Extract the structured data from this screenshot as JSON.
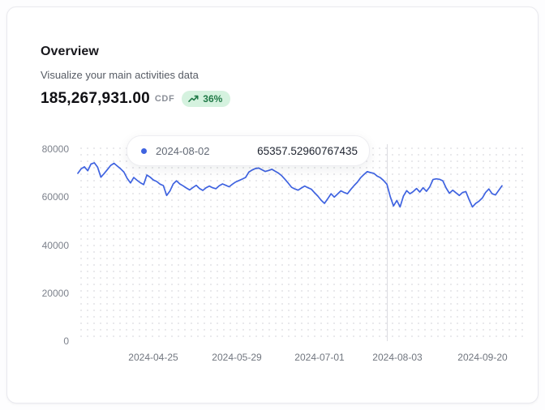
{
  "header": {
    "title": "Overview",
    "subtitle": "Visualize your main activities data",
    "amount": "185,267,931.00",
    "currency": "CDF",
    "trend_badge": {
      "label": "36%",
      "direction": "up",
      "bg_color": "#d5f2df",
      "text_color": "#217a48"
    }
  },
  "tooltip": {
    "date": "2024-08-02",
    "value": "65357.52960767435",
    "dot_color": "#3f63e0"
  },
  "chart_data": {
    "type": "line",
    "title": "Overview",
    "xlabel": "",
    "ylabel": "",
    "ylim": [
      0,
      80000
    ],
    "y_ticks": [
      80000,
      60000,
      40000,
      20000,
      0
    ],
    "x_tick_labels": [
      "2024-04-25",
      "2024-05-29",
      "2024-07-01",
      "2024-08-03",
      "2024-09-20"
    ],
    "grid": "dotted",
    "legend": "none",
    "line_color": "#3f63e0",
    "highlight_index": 94,
    "series": [
      {
        "name": "main activities",
        "values": [
          69900,
          71800,
          72600,
          71000,
          73800,
          74300,
          72500,
          68300,
          69800,
          71500,
          73200,
          74100,
          72900,
          71800,
          70400,
          67800,
          65900,
          68200,
          67000,
          66000,
          65200,
          69200,
          68300,
          67100,
          66500,
          65400,
          64800,
          60700,
          62500,
          65500,
          66800,
          65500,
          64700,
          63800,
          63000,
          64000,
          64900,
          63600,
          62800,
          63900,
          64600,
          63900,
          63500,
          64700,
          65500,
          64900,
          64300,
          65400,
          66300,
          66900,
          67500,
          68200,
          70400,
          71300,
          71900,
          72100,
          71400,
          70700,
          71100,
          71600,
          70800,
          70000,
          68900,
          67400,
          65800,
          64100,
          63400,
          62900,
          63800,
          64600,
          63900,
          63300,
          61800,
          60400,
          58700,
          57400,
          59300,
          61400,
          60000,
          61300,
          62600,
          61900,
          61400,
          63200,
          64800,
          66200,
          68100,
          69400,
          70600,
          70200,
          69900,
          68800,
          68100,
          66900,
          65357.52960767435,
          60200,
          56300,
          58600,
          55900,
          60400,
          62700,
          61400,
          62300,
          63600,
          62100,
          63900,
          62400,
          64200,
          67300,
          67600,
          67400,
          66800,
          63800,
          61600,
          62900,
          61800,
          60700,
          61900,
          62300,
          58900,
          55900,
          57400,
          58300,
          59600,
          61900,
          63400,
          61400,
          60900,
          62800,
          64700
        ]
      }
    ]
  }
}
